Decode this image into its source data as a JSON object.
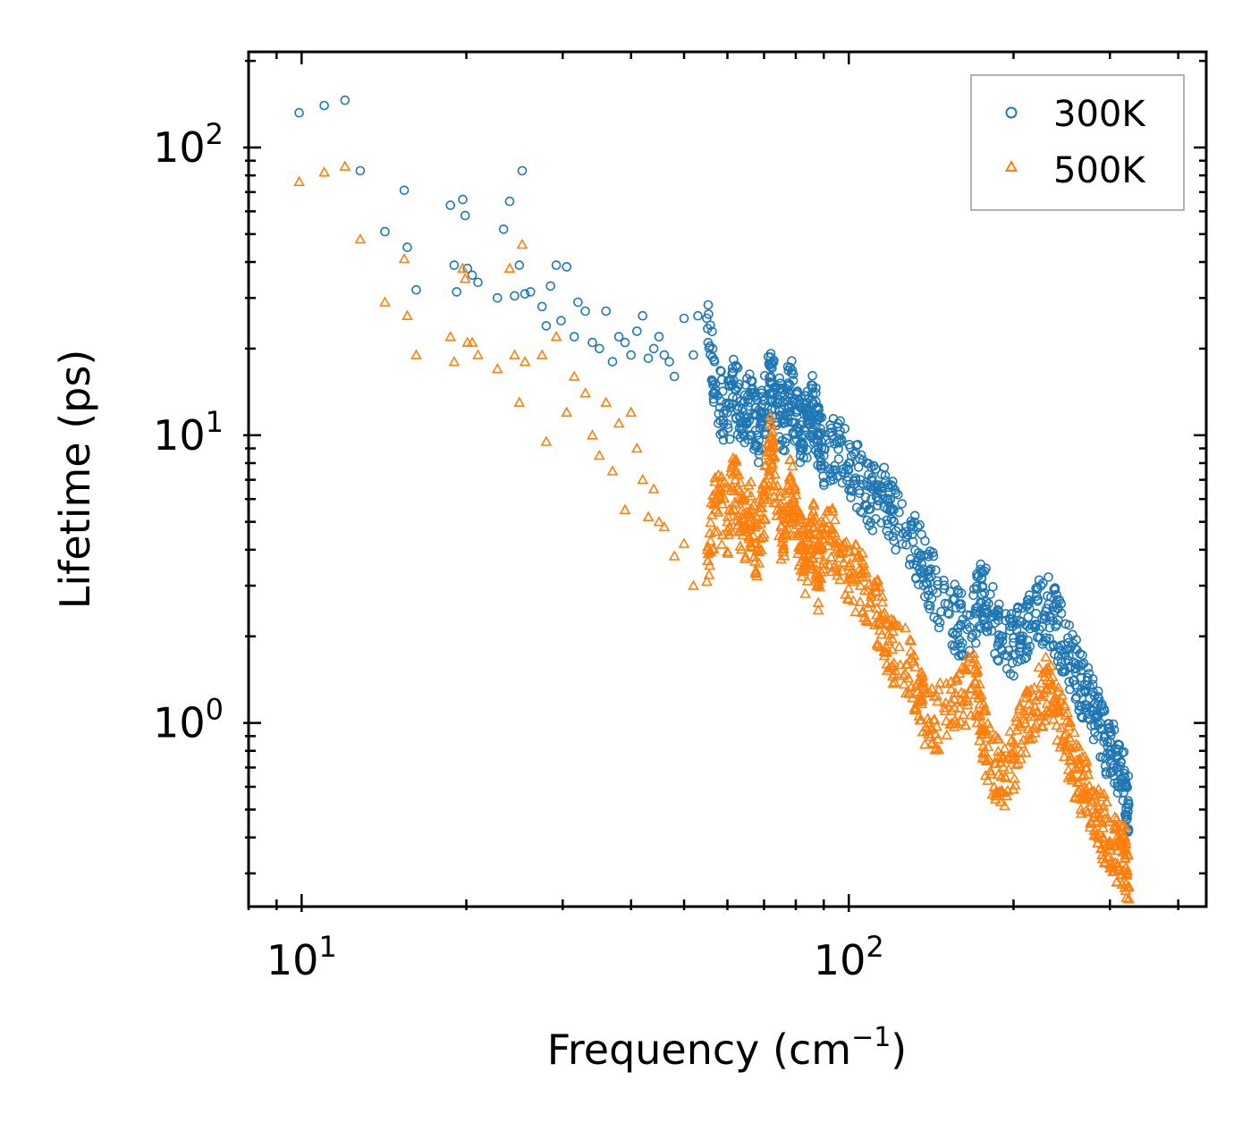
{
  "chart_data": {
    "type": "scatter",
    "xscale": "log",
    "yscale": "log",
    "xlim": [
      8,
      450
    ],
    "ylim": [
      0.23,
      215
    ],
    "xlabel": "Frequency (cm",
    "xlabel_sup": "−1",
    "xlabel_tail": ")",
    "ylabel": "Lifetime (ps)",
    "x_ticks": [
      {
        "value": 10,
        "base": "10",
        "exp": "1"
      },
      {
        "value": 100,
        "base": "10",
        "exp": "2"
      }
    ],
    "y_ticks": [
      {
        "value": 1,
        "base": "10",
        "exp": "0"
      },
      {
        "value": 10,
        "base": "10",
        "exp": "1"
      },
      {
        "value": 100,
        "base": "10",
        "exp": "2"
      }
    ],
    "legend_position": "top-right",
    "series": [
      {
        "name": "300K",
        "label": "300K",
        "marker": "circle",
        "color": "#1f77b4",
        "points": [
          [
            9.9,
            132
          ],
          [
            11,
            140
          ],
          [
            12,
            146
          ],
          [
            12.8,
            83
          ],
          [
            14.2,
            51
          ],
          [
            15.4,
            71
          ],
          [
            15.6,
            45
          ],
          [
            16.2,
            32
          ],
          [
            18.7,
            63
          ],
          [
            19,
            39
          ],
          [
            19.2,
            31.5
          ],
          [
            19.7,
            66
          ],
          [
            19.9,
            58
          ],
          [
            20.1,
            38
          ],
          [
            20.5,
            36
          ],
          [
            21,
            34
          ],
          [
            22.8,
            30
          ],
          [
            23.4,
            52
          ],
          [
            24,
            65
          ],
          [
            24.5,
            30.5
          ],
          [
            25,
            39
          ],
          [
            25.3,
            83
          ],
          [
            25.6,
            31
          ],
          [
            26.2,
            31.5
          ],
          [
            27.5,
            28
          ],
          [
            28,
            24
          ],
          [
            28.5,
            33
          ],
          [
            29.2,
            39
          ],
          [
            29.8,
            25
          ],
          [
            30.5,
            38.5
          ],
          [
            31.5,
            22
          ],
          [
            32,
            29
          ],
          [
            33,
            27
          ],
          [
            34,
            21
          ],
          [
            35,
            20
          ],
          [
            36,
            27
          ],
          [
            37,
            18
          ],
          [
            38,
            22
          ],
          [
            39,
            21
          ],
          [
            40,
            19
          ],
          [
            41,
            23
          ],
          [
            42,
            26
          ],
          [
            43,
            18.5
          ],
          [
            44,
            20
          ],
          [
            45,
            22
          ],
          [
            46,
            19
          ],
          [
            47,
            18
          ],
          [
            48,
            16
          ],
          [
            50,
            25.5
          ],
          [
            52,
            19
          ],
          [
            53,
            26
          ],
          [
            55,
            25.5
          ],
          [
            57,
            14
          ],
          [
            60,
            12
          ],
          [
            62,
            14.5
          ],
          [
            64,
            11
          ],
          [
            66,
            13
          ],
          [
            68,
            10
          ],
          [
            70,
            12
          ],
          [
            72,
            16
          ],
          [
            74,
            13
          ],
          [
            76,
            11
          ],
          [
            78,
            15
          ],
          [
            80,
            12
          ],
          [
            82,
            10
          ],
          [
            84,
            11
          ],
          [
            86,
            13
          ],
          [
            88,
            10
          ],
          [
            90,
            8.5
          ],
          [
            95,
            9.5
          ],
          [
            100,
            8
          ],
          [
            105,
            7
          ],
          [
            110,
            6
          ],
          [
            115,
            6.2
          ],
          [
            120,
            5.5
          ],
          [
            128,
            4.5
          ],
          [
            135,
            3.8
          ],
          [
            140,
            3.2
          ],
          [
            150,
            2.6
          ],
          [
            160,
            2.2
          ],
          [
            170,
            2.4
          ],
          [
            175,
            2.8
          ],
          [
            180,
            2.6
          ],
          [
            190,
            2.0
          ],
          [
            200,
            1.9
          ],
          [
            210,
            2.2
          ],
          [
            220,
            2.4
          ],
          [
            230,
            2.5
          ],
          [
            240,
            2.2
          ],
          [
            250,
            1.8
          ],
          [
            260,
            1.5
          ],
          [
            270,
            1.3
          ],
          [
            280,
            1.1
          ],
          [
            290,
            0.95
          ],
          [
            300,
            0.8
          ],
          [
            310,
            0.7
          ],
          [
            320,
            0.6
          ],
          [
            325,
            0.52
          ]
        ]
      },
      {
        "name": "500K",
        "label": "500K",
        "marker": "triangle",
        "color": "#ff7f0e",
        "points": [
          [
            9.9,
            76
          ],
          [
            11,
            82
          ],
          [
            12,
            86
          ],
          [
            12.8,
            48
          ],
          [
            14.2,
            29
          ],
          [
            15.4,
            41
          ],
          [
            15.6,
            26
          ],
          [
            16.2,
            19
          ],
          [
            18.7,
            22
          ],
          [
            19,
            18
          ],
          [
            19.7,
            38
          ],
          [
            19.9,
            35
          ],
          [
            20.1,
            21
          ],
          [
            20.5,
            21
          ],
          [
            21,
            19
          ],
          [
            22.8,
            17
          ],
          [
            24,
            38
          ],
          [
            24.5,
            19
          ],
          [
            25,
            13
          ],
          [
            25.3,
            46
          ],
          [
            25.6,
            18
          ],
          [
            27.5,
            19
          ],
          [
            28,
            9.5
          ],
          [
            29.2,
            22
          ],
          [
            30.5,
            12
          ],
          [
            31.5,
            16
          ],
          [
            33,
            14
          ],
          [
            34,
            10
          ],
          [
            35,
            8.5
          ],
          [
            36,
            13
          ],
          [
            37,
            7.5
          ],
          [
            38,
            11
          ],
          [
            39,
            5.5
          ],
          [
            40,
            12
          ],
          [
            41,
            9
          ],
          [
            42,
            7
          ],
          [
            43,
            5.2
          ],
          [
            44,
            6.5
          ],
          [
            45,
            5
          ],
          [
            46,
            4.8
          ],
          [
            48,
            3.8
          ],
          [
            50,
            4.2
          ],
          [
            52,
            3.0
          ],
          [
            55,
            3.1
          ],
          [
            57,
            6
          ],
          [
            60,
            5
          ],
          [
            62,
            7
          ],
          [
            64,
            4.5
          ],
          [
            66,
            5.5
          ],
          [
            68,
            4
          ],
          [
            70,
            6
          ],
          [
            72,
            9
          ],
          [
            74,
            5.5
          ],
          [
            76,
            4.5
          ],
          [
            78,
            7
          ],
          [
            80,
            5
          ],
          [
            82,
            4
          ],
          [
            84,
            3.5
          ],
          [
            86,
            4.8
          ],
          [
            88,
            3.2
          ],
          [
            90,
            4.5
          ],
          [
            95,
            4.2
          ],
          [
            100,
            3.5
          ],
          [
            105,
            3.0
          ],
          [
            110,
            2.8
          ],
          [
            115,
            2.2
          ],
          [
            120,
            1.8
          ],
          [
            128,
            1.6
          ],
          [
            135,
            1.2
          ],
          [
            140,
            1.0
          ],
          [
            150,
            1.1
          ],
          [
            160,
            1.2
          ],
          [
            170,
            1.4
          ],
          [
            175,
            1.0
          ],
          [
            180,
            0.75
          ],
          [
            190,
            0.65
          ],
          [
            200,
            0.75
          ],
          [
            210,
            1.0
          ],
          [
            220,
            1.2
          ],
          [
            230,
            1.3
          ],
          [
            240,
            1.1
          ],
          [
            250,
            0.85
          ],
          [
            260,
            0.7
          ],
          [
            270,
            0.6
          ],
          [
            280,
            0.5
          ],
          [
            290,
            0.45
          ],
          [
            300,
            0.38
          ],
          [
            310,
            0.36
          ],
          [
            320,
            0.34
          ],
          [
            325,
            0.27
          ]
        ]
      }
    ]
  }
}
